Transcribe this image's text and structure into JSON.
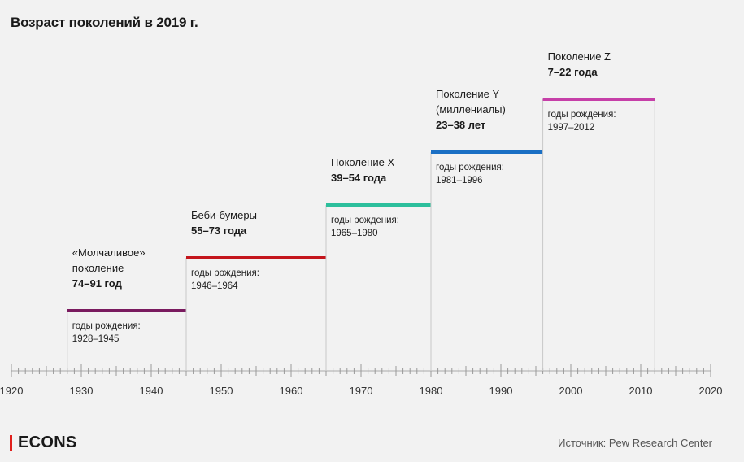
{
  "title": "Возраст поколений в 2019 г.",
  "source": "Источник: Pew Research Center",
  "logo": "ECONS",
  "colors": {
    "silent": "#7a1b5f",
    "boomers": "#c4151c",
    "genx": "#2cbf9c",
    "millennials": "#1a6fc4",
    "genz": "#c63fa8"
  },
  "chart_data": {
    "type": "timeline",
    "title": "Возраст поколений в 2019 г.",
    "xlim": [
      1920,
      2020
    ],
    "tick_labels": [
      "1920",
      "1930",
      "1940",
      "1950",
      "1960",
      "1970",
      "1980",
      "1990",
      "2000",
      "2010",
      "2020"
    ],
    "generations": [
      {
        "name_lines": [
          "«Молчаливое»",
          "поколение"
        ],
        "age": "74–91 год",
        "births_label": "годы рождения:",
        "births": "1928–1945",
        "start": 1928,
        "end": 1945,
        "step": 1,
        "color": "#7a1b5f"
      },
      {
        "name_lines": [
          "Беби-бумеры"
        ],
        "age": "55–73 года",
        "births_label": "годы рождения:",
        "births": "1946–1964",
        "start": 1945,
        "end": 1965,
        "step": 2,
        "color": "#c4151c"
      },
      {
        "name_lines": [
          "Поколение X"
        ],
        "age": "39–54 года",
        "births_label": "годы рождения:",
        "births": "1965–1980",
        "start": 1965,
        "end": 1980,
        "step": 3,
        "color": "#2cbf9c"
      },
      {
        "name_lines": [
          "Поколение Y",
          "(миллениалы)"
        ],
        "age": "23–38 лет",
        "births_label": "годы рождения:",
        "births": "1981–1996",
        "start": 1980,
        "end": 1996,
        "step": 4,
        "color": "#1a6fc4"
      },
      {
        "name_lines": [
          "Поколение Z"
        ],
        "age": "7–22 года",
        "births_label": "годы рождения:",
        "births": "1997–2012",
        "start": 1996,
        "end": 2012,
        "step": 5,
        "color": "#c63fa8"
      }
    ]
  }
}
